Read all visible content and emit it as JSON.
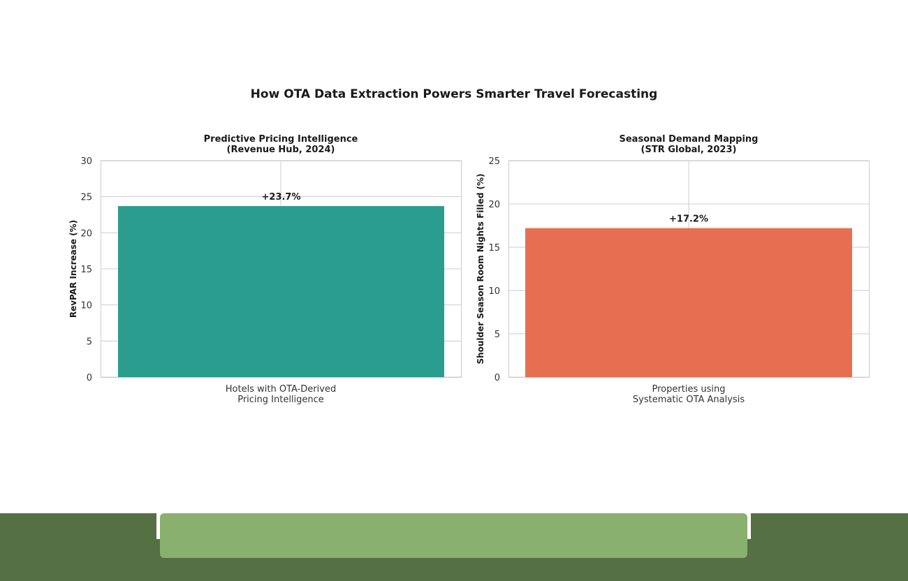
{
  "main_title": "How OTA Data Extraction Powers Smarter Travel Forecasting",
  "chart_data": [
    {
      "type": "bar",
      "title_line1": "Predictive Pricing Intelligence",
      "title_line2": "(Revenue Hub, 2024)",
      "ylabel": "RevPAR Increase (%)",
      "category_line1": "Hotels with OTA-Derived",
      "category_line2": "Pricing Intelligence",
      "categories": [
        "Hotels with OTA-Derived Pricing Intelligence"
      ],
      "values": [
        23.7
      ],
      "value_label": "+23.7%",
      "ylim": [
        0,
        30
      ],
      "yticks": [
        0,
        5,
        10,
        15,
        20,
        25,
        30
      ],
      "ytick_labels": [
        "0",
        "5",
        "10",
        "15",
        "20",
        "25",
        "30"
      ],
      "color": "#2a9d8f",
      "grid": true
    },
    {
      "type": "bar",
      "title_line1": "Seasonal Demand Mapping",
      "title_line2": "(STR Global, 2023)",
      "ylabel": "Shoulder Season Room Nights Filled (%)",
      "category_line1": "Properties using",
      "category_line2": "Systematic OTA Analysis",
      "categories": [
        "Properties using Systematic OTA Analysis"
      ],
      "values": [
        17.2
      ],
      "value_label": "+17.2%",
      "ylim": [
        0,
        25
      ],
      "yticks": [
        0,
        5,
        10,
        15,
        20,
        25
      ],
      "ytick_labels": [
        "0",
        "5",
        "10",
        "15",
        "20",
        "25"
      ],
      "color": "#e76f51",
      "grid": true
    }
  ]
}
